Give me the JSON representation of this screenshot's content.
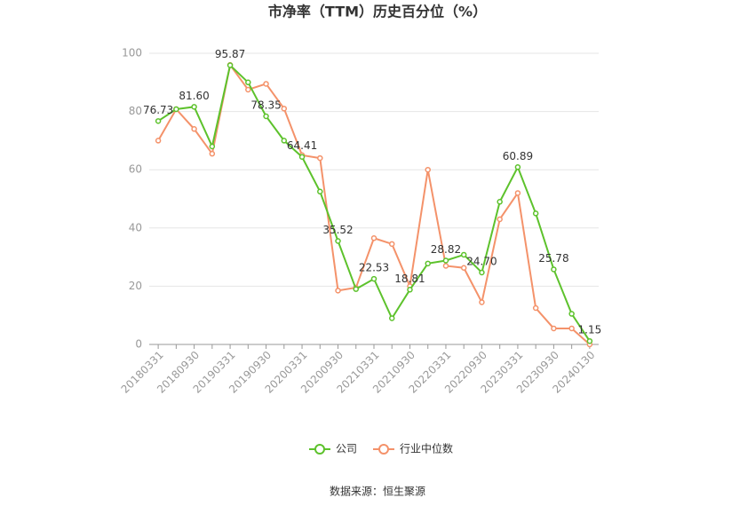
{
  "chart_data": {
    "type": "line",
    "title": "市净率（TTM）历史百分位（%）",
    "categories": [
      "20180331",
      null,
      "20180930",
      null,
      "20190331",
      null,
      "20190930",
      null,
      "20200331",
      null,
      "20200930",
      null,
      "20210331",
      null,
      "20210930",
      null,
      "20220331",
      null,
      "20220930",
      null,
      "20230331",
      null,
      "20230930",
      null,
      "20240130"
    ],
    "series": [
      {
        "name": "公司",
        "color": "#5dc22c",
        "values": [
          76.73,
          80.8,
          81.6,
          68,
          95.87,
          90,
          78.35,
          70,
          64.41,
          52.5,
          35.52,
          19,
          22.53,
          9,
          18.81,
          27.8,
          28.82,
          30.8,
          24.7,
          49,
          60.89,
          45,
          25.78,
          10.5,
          1.15
        ],
        "value_labels": [
          "76.73",
          null,
          "81.60",
          null,
          "95.87",
          null,
          "78.35",
          null,
          "64.41",
          null,
          "35.52",
          null,
          "22.53",
          null,
          "18.81",
          null,
          "28.82",
          null,
          "24.70",
          null,
          "60.89",
          null,
          "25.78",
          null,
          "1.15"
        ]
      },
      {
        "name": "行业中位数",
        "color": "#f4926a",
        "values": [
          70,
          80.8,
          74,
          65.5,
          96,
          87.5,
          89.5,
          81,
          65,
          64,
          18.5,
          19.5,
          36.5,
          34.5,
          20,
          60,
          27,
          26.3,
          14.5,
          43,
          52,
          12.5,
          5.5,
          5.5,
          0
        ]
      }
    ],
    "ylim": [
      0,
      100
    ],
    "yticks": [
      0,
      20,
      40,
      60,
      80,
      100
    ],
    "grid": true,
    "source": "数据来源：恒生聚源"
  }
}
